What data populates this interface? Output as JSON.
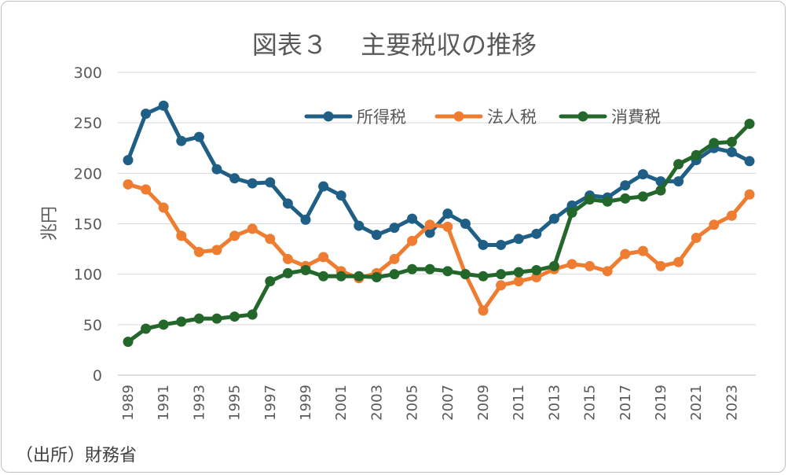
{
  "chart_data": {
    "type": "line",
    "title": "図表３　 主要税収の推移",
    "ylabel": "兆円",
    "xlabel": "",
    "ylim": [
      0,
      300
    ],
    "yticks": [
      0,
      50,
      100,
      150,
      200,
      250,
      300
    ],
    "grid": true,
    "legend_position": "top-right",
    "x": [
      1989,
      1990,
      1991,
      1992,
      1993,
      1994,
      1995,
      1996,
      1997,
      1998,
      1999,
      2000,
      2001,
      2002,
      2003,
      2004,
      2005,
      2006,
      2007,
      2008,
      2009,
      2010,
      2011,
      2012,
      2013,
      2014,
      2015,
      2016,
      2017,
      2018,
      2019,
      2020,
      2021,
      2022,
      2023,
      2024
    ],
    "xtick_labels": [
      "1989",
      "1991",
      "1993",
      "1995",
      "1997",
      "1999",
      "2001",
      "2003",
      "2005",
      "2007",
      "2009",
      "2011",
      "2013",
      "2015",
      "2017",
      "2019",
      "2021",
      "2023"
    ],
    "series": [
      {
        "name": "所得税",
        "color": "#1f5f86",
        "values": [
          213,
          259,
          267,
          232,
          236,
          204,
          195,
          190,
          191,
          170,
          154,
          187,
          178,
          148,
          139,
          146,
          155,
          141,
          160,
          150,
          129,
          129,
          135,
          140,
          155,
          168,
          178,
          176,
          188,
          199,
          192,
          192,
          213,
          225,
          221,
          212
        ]
      },
      {
        "name": "法人税",
        "color": "#ee7d31",
        "values": [
          189,
          184,
          166,
          138,
          122,
          124,
          138,
          145,
          135,
          115,
          108,
          117,
          103,
          96,
          101,
          115,
          133,
          149,
          147,
          100,
          64,
          89,
          93,
          97,
          105,
          110,
          108,
          103,
          120,
          123,
          108,
          112,
          136,
          149,
          158,
          179
        ]
      },
      {
        "name": "消費税",
        "color": "#23672b",
        "values": [
          33,
          46,
          50,
          53,
          56,
          56,
          58,
          60,
          93,
          101,
          104,
          98,
          98,
          98,
          97,
          100,
          105,
          105,
          103,
          100,
          98,
          100,
          102,
          104,
          108,
          161,
          174,
          172,
          175,
          177,
          183,
          209,
          218,
          230,
          231,
          249
        ]
      }
    ]
  },
  "source_note": "（出所）財務省"
}
